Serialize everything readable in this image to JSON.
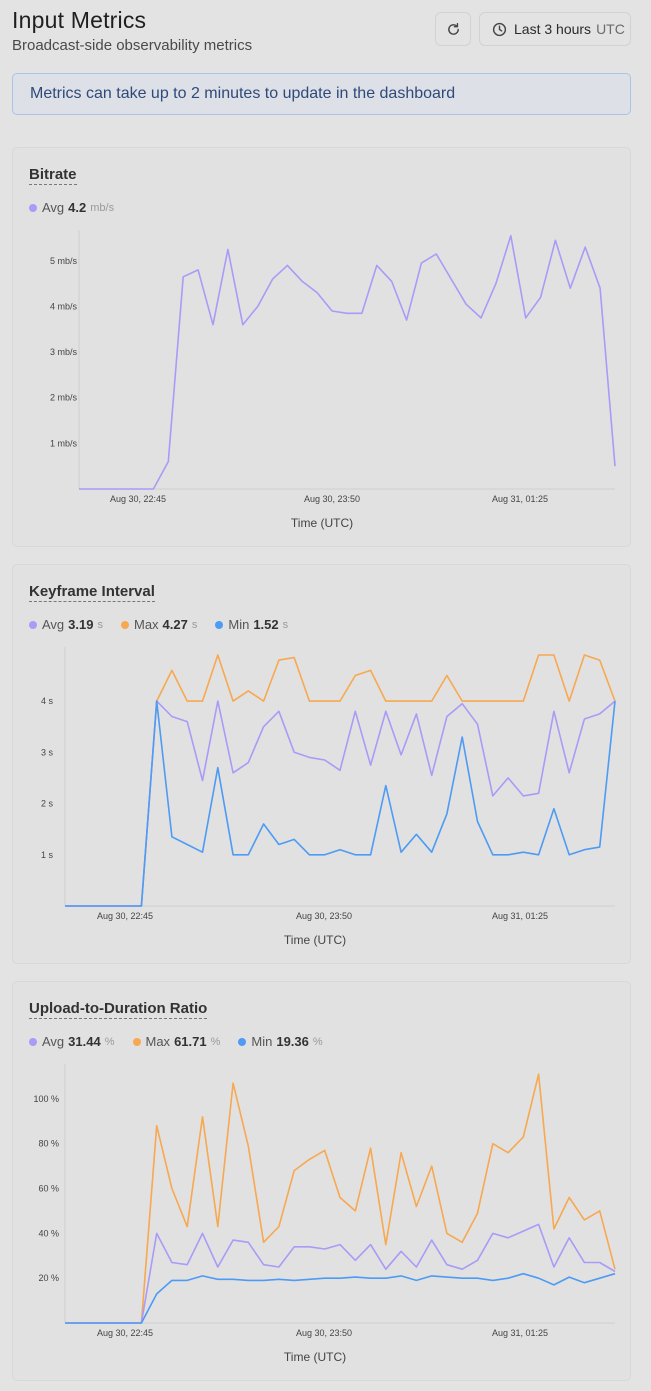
{
  "header": {
    "title": "Input Metrics",
    "subtitle": "Broadcast-side observability metrics",
    "range_label": "Last 3 hours",
    "range_tz": "UTC"
  },
  "banner": {
    "text": "Metrics can take up to 2 minutes to update in the dashboard"
  },
  "colors": {
    "avg": "#a99bf7",
    "max": "#f7a850",
    "min": "#4d9bf5"
  },
  "icons": {
    "refresh": "refresh-icon",
    "clock": "clock-icon"
  },
  "cards": [
    {
      "title": "Bitrate",
      "legend": [
        {
          "label": "Avg",
          "value": "4.2",
          "unit": "mb/s",
          "series": "avg"
        }
      ],
      "xlabel": "Time (UTC)"
    },
    {
      "title": "Keyframe Interval",
      "legend": [
        {
          "label": "Avg",
          "value": "3.19",
          "unit": "s",
          "series": "avg"
        },
        {
          "label": "Max",
          "value": "4.27",
          "unit": "s",
          "series": "max"
        },
        {
          "label": "Min",
          "value": "1.52",
          "unit": "s",
          "series": "min"
        }
      ],
      "xlabel": "Time (UTC)"
    },
    {
      "title": "Upload-to-Duration Ratio",
      "legend": [
        {
          "label": "Avg",
          "value": "31.44",
          "unit": "%",
          "series": "avg"
        },
        {
          "label": "Max",
          "value": "61.71",
          "unit": "%",
          "series": "max"
        },
        {
          "label": "Min",
          "value": "19.36",
          "unit": "%",
          "series": "min"
        }
      ],
      "xlabel": "Time (UTC)"
    }
  ],
  "chart_data": [
    {
      "type": "line",
      "title": "Bitrate",
      "xlabel": "Time (UTC)",
      "ylabel": "",
      "x_ticks": [
        "Aug 30, 22:45",
        "Aug 30, 23:50",
        "Aug 31, 01:25"
      ],
      "y_ticks": [
        "1 mb/s",
        "2 mb/s",
        "3 mb/s",
        "4 mb/s",
        "5 mb/s"
      ],
      "ylim": [
        0,
        5.5
      ],
      "grid": false,
      "series": [
        {
          "name": "Avg",
          "color": "avg",
          "values": [
            0,
            0,
            0,
            0,
            0,
            0,
            0.6,
            4.65,
            4.8,
            3.6,
            5.25,
            3.6,
            4,
            4.6,
            4.9,
            4.55,
            4.3,
            3.9,
            3.85,
            3.85,
            4.9,
            4.55,
            3.7,
            4.95,
            5.15,
            4.6,
            4.05,
            3.75,
            4.5,
            5.55,
            3.75,
            4.2,
            5.45,
            4.4,
            5.3,
            4.4,
            0.5
          ]
        }
      ]
    },
    {
      "type": "line",
      "title": "Keyframe Interval",
      "xlabel": "Time (UTC)",
      "ylabel": "",
      "x_ticks": [
        "Aug 30, 22:45",
        "Aug 30, 23:50",
        "Aug 31, 01:25"
      ],
      "y_ticks": [
        "1 s",
        "2 s",
        "3 s",
        "4 s"
      ],
      "ylim": [
        0,
        4.9
      ],
      "grid": false,
      "series": [
        {
          "name": "Max",
          "color": "max",
          "values": [
            0,
            0,
            0,
            0,
            0,
            0,
            4,
            4.6,
            4,
            4,
            4.9,
            4,
            4.2,
            4,
            4.8,
            4.85,
            4,
            4,
            4,
            4.5,
            4.6,
            4,
            4,
            4,
            4,
            4.5,
            4,
            4,
            4,
            4,
            4,
            4.9,
            4.9,
            4,
            4.9,
            4.8,
            4
          ]
        },
        {
          "name": "Avg",
          "color": "avg",
          "values": [
            0,
            0,
            0,
            0,
            0,
            0,
            4,
            3.7,
            3.6,
            2.45,
            4,
            2.6,
            2.8,
            3.5,
            3.8,
            3,
            2.9,
            2.85,
            2.65,
            3.8,
            2.75,
            3.8,
            2.95,
            3.75,
            2.55,
            3.7,
            3.95,
            3.55,
            2.15,
            2.5,
            2.15,
            2.2,
            3.8,
            2.6,
            3.65,
            3.75,
            4
          ]
        },
        {
          "name": "Min",
          "color": "min",
          "values": [
            0,
            0,
            0,
            0,
            0,
            0,
            4,
            1.35,
            1.2,
            1.05,
            2.7,
            1,
            1,
            1.6,
            1.2,
            1.3,
            1,
            1,
            1.1,
            1,
            1,
            2.35,
            1.05,
            1.4,
            1.05,
            1.8,
            3.3,
            1.65,
            1,
            1,
            1.05,
            1,
            1.9,
            1,
            1.1,
            1.15,
            4
          ]
        }
      ]
    },
    {
      "type": "line",
      "title": "Upload-to-Duration Ratio",
      "xlabel": "Time (UTC)",
      "ylabel": "",
      "x_ticks": [
        "Aug 30, 22:45",
        "Aug 30, 23:50",
        "Aug 31, 01:25"
      ],
      "y_ticks": [
        "20 %",
        "40 %",
        "60 %",
        "80 %",
        "100 %"
      ],
      "ylim": [
        0,
        112
      ],
      "grid": false,
      "series": [
        {
          "name": "Max",
          "color": "max",
          "values": [
            0,
            0,
            0,
            0,
            0,
            0,
            88,
            60,
            43,
            92,
            43,
            107,
            79,
            36,
            43,
            68,
            73,
            77,
            56,
            50,
            78,
            35,
            76,
            52,
            70,
            40,
            36,
            49,
            80,
            76,
            83,
            111,
            42,
            56,
            46,
            50,
            24
          ]
        },
        {
          "name": "Avg",
          "color": "avg",
          "values": [
            0,
            0,
            0,
            0,
            0,
            0,
            40,
            27,
            26,
            40,
            25,
            37,
            36,
            26,
            25,
            34,
            34,
            33,
            35,
            28,
            35,
            24,
            32,
            25,
            37,
            26,
            24,
            28,
            40,
            38,
            41,
            44,
            25,
            38,
            27,
            27,
            23
          ]
        },
        {
          "name": "Min",
          "color": "min",
          "values": [
            0,
            0,
            0,
            0,
            0,
            0,
            13,
            19,
            19,
            21,
            19.5,
            19.5,
            19,
            19,
            19.5,
            19,
            19.5,
            20,
            20,
            20.5,
            20,
            20,
            21,
            19,
            21,
            20.5,
            20,
            20,
            19,
            20,
            22,
            20,
            17,
            20.5,
            18,
            20,
            22
          ]
        }
      ]
    }
  ]
}
